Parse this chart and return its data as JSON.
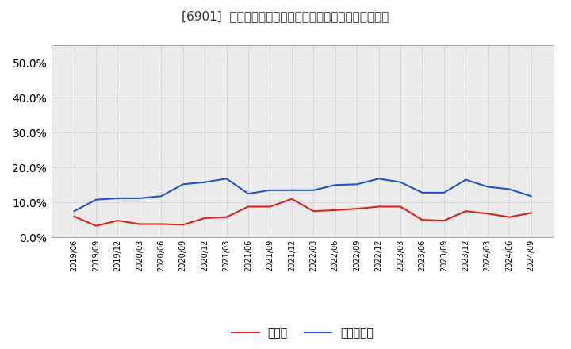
{
  "title": "[6901]  現預金、有利子負債の総資産に対する比率の推移",
  "x_labels": [
    "2019/06",
    "2019/09",
    "2019/12",
    "2020/03",
    "2020/06",
    "2020/09",
    "2020/12",
    "2021/03",
    "2021/06",
    "2021/09",
    "2021/12",
    "2022/03",
    "2022/06",
    "2022/09",
    "2022/12",
    "2023/03",
    "2023/06",
    "2023/09",
    "2023/12",
    "2024/03",
    "2024/06",
    "2024/09"
  ],
  "cash_values": [
    0.06,
    0.033,
    0.048,
    0.038,
    0.038,
    0.036,
    0.055,
    0.058,
    0.088,
    0.088,
    0.11,
    0.075,
    0.078,
    0.082,
    0.088,
    0.088,
    0.05,
    0.048,
    0.075,
    0.068,
    0.058,
    0.07
  ],
  "debt_values": [
    0.075,
    0.108,
    0.112,
    0.112,
    0.118,
    0.152,
    0.158,
    0.168,
    0.125,
    0.135,
    0.135,
    0.135,
    0.15,
    0.152,
    0.168,
    0.158,
    0.128,
    0.128,
    0.165,
    0.145,
    0.138,
    0.118
  ],
  "cash_color": "#dd2222",
  "debt_color": "#2255cc",
  "background_color": "#ffffff",
  "plot_bg_color": "#ebebeb",
  "legend_cash": "現預金",
  "legend_debt": "有利子負債",
  "ylim": [
    0.0,
    0.55
  ],
  "yticks": [
    0.0,
    0.1,
    0.2,
    0.3,
    0.4,
    0.5
  ]
}
